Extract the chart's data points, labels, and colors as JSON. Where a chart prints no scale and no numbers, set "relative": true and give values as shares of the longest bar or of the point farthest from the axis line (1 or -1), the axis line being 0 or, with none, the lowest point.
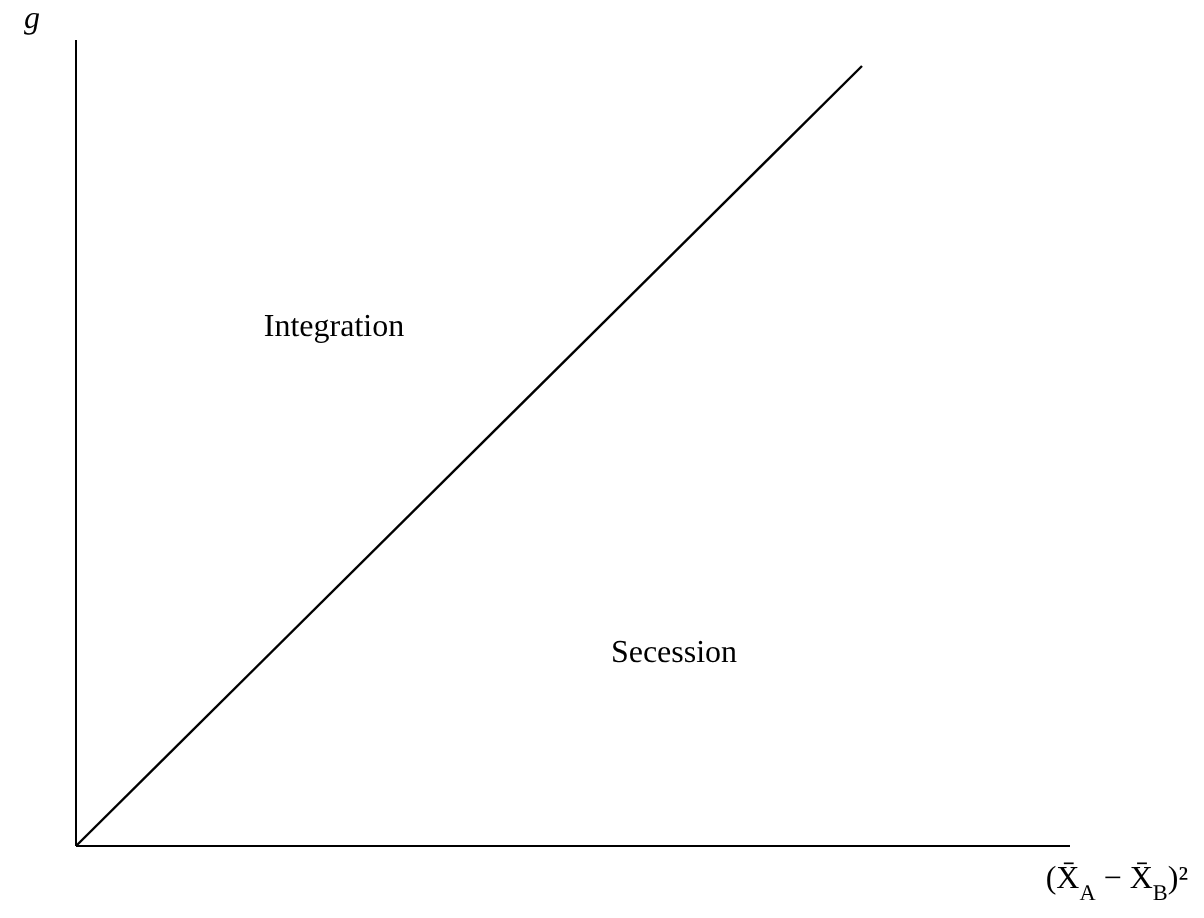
{
  "chart_data": {
    "type": "line",
    "relative": true,
    "xlabel": "(X̄$_{A}$ − X̄$_{B}$)²",
    "ylabel": "g",
    "categories": [
      null,
      null
    ],
    "line_style": "solid",
    "series": [
      {
        "color": "#000000",
        "values": [
          0,
          1
        ]
      }
    ],
    "annotations": [
      "Integration",
      "Secession"
    ]
  }
}
